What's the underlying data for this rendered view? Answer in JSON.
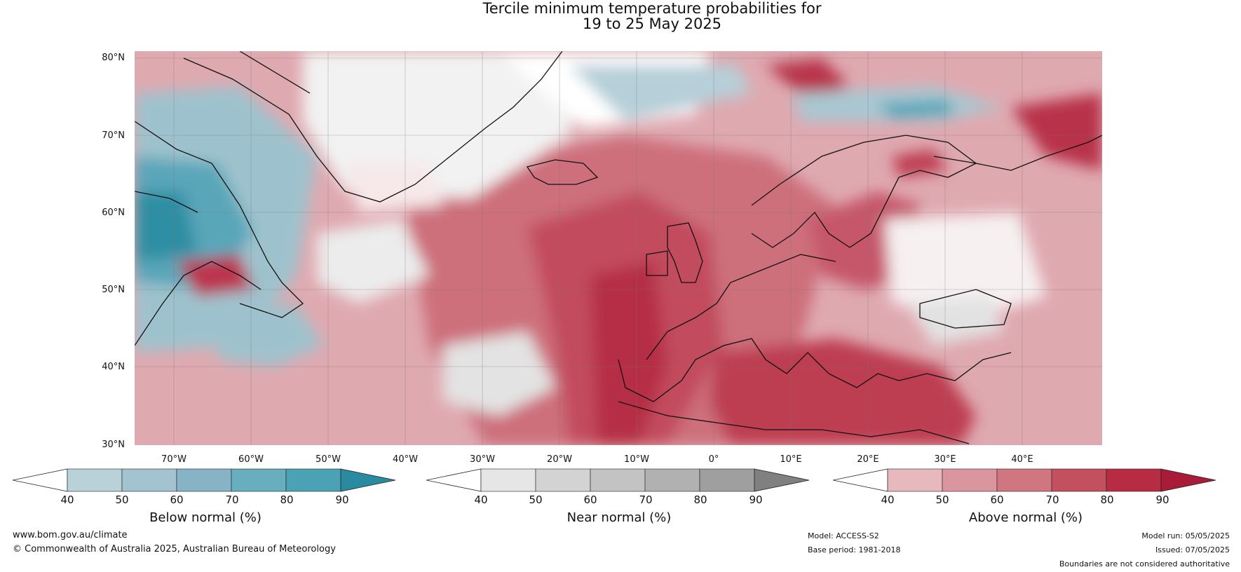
{
  "title": {
    "line1": "Tercile minimum temperature probabilities for",
    "line2": "19 to 25 May 2025"
  },
  "latitude_labels": [
    "80°N",
    "70°N",
    "60°N",
    "50°N",
    "40°N",
    "30°N"
  ],
  "longitude_labels": [
    "70°W",
    "60°W",
    "50°W",
    "40°W",
    "30°W",
    "20°W",
    "10°W",
    "0°",
    "10°E",
    "20°E",
    "30°E",
    "40°E"
  ],
  "colorbars": [
    {
      "label": "Below normal (%)",
      "ticks": [
        "40",
        "50",
        "60",
        "70",
        "80",
        "90"
      ],
      "colors": [
        "#ffffff",
        "#b9d2da",
        "#a2c3cf",
        "#86b3c5",
        "#68aebe",
        "#4ca2b5",
        "#2a8aa0"
      ]
    },
    {
      "label": "Near normal (%)",
      "ticks": [
        "40",
        "50",
        "60",
        "70",
        "80",
        "90"
      ],
      "colors": [
        "#ffffff",
        "#e6e6e6",
        "#d3d3d3",
        "#c3c3c3",
        "#b1b1b1",
        "#9f9f9f",
        "#808080"
      ]
    },
    {
      "label": "Above normal (%)",
      "ticks": [
        "40",
        "50",
        "60",
        "70",
        "80",
        "90"
      ],
      "colors": [
        "#ffffff",
        "#e7b9bf",
        "#db959f",
        "#cf7681",
        "#c4505f",
        "#b72c42",
        "#a81c38"
      ]
    }
  ],
  "footer": {
    "website": "www.bom.gov.au/climate",
    "copyright": "© Commonwealth of Australia 2025, Australian Bureau of Meteorology",
    "model": "Model: ACCESS-S2",
    "base_period": "Base period: 1981-2018",
    "model_run": "Model run: 05/05/2025",
    "issued": "Issued: 07/05/2025",
    "disclaimer": "Boundaries are not considered authoritative"
  }
}
